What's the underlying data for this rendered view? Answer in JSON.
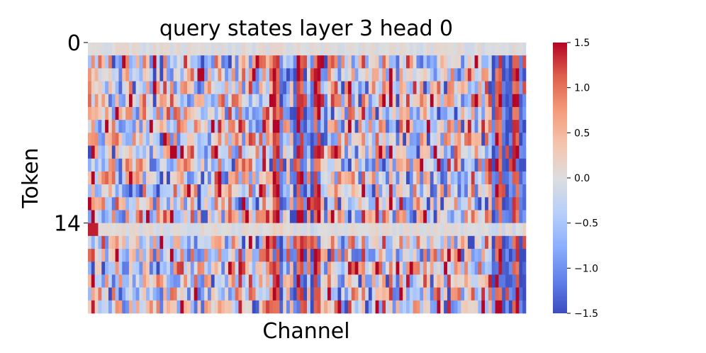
{
  "chart_data": {
    "type": "heatmap",
    "title": "query states layer 3 head 0",
    "xlabel": "Channel",
    "ylabel": "Token",
    "n_rows": 21,
    "n_cols": 128,
    "row_ticks": [
      {
        "row": 0,
        "label": "0"
      },
      {
        "row": 14,
        "label": "14"
      }
    ],
    "colorbar": {
      "vmin": -1.5,
      "vmax": 1.5,
      "cmap": "coolwarm",
      "ticks": [
        {
          "value": 1.5,
          "label": "1.5"
        },
        {
          "value": 1.0,
          "label": "1.0"
        },
        {
          "value": 0.5,
          "label": "0.5"
        },
        {
          "value": 0.0,
          "label": "0.0"
        },
        {
          "value": -0.5,
          "label": "−0.5"
        },
        {
          "value": -1.0,
          "label": "−1.0"
        },
        {
          "value": -1.5,
          "label": "−1.5"
        }
      ]
    },
    "channel_profile": {
      "strong_positive": [
        54,
        55,
        61,
        62,
        66,
        67,
        119,
        120,
        124,
        125
      ],
      "strong_negative": [
        56,
        60,
        63,
        65,
        118,
        121,
        122,
        123,
        126,
        127
      ],
      "quiet_rows": [
        0,
        14
      ]
    }
  }
}
